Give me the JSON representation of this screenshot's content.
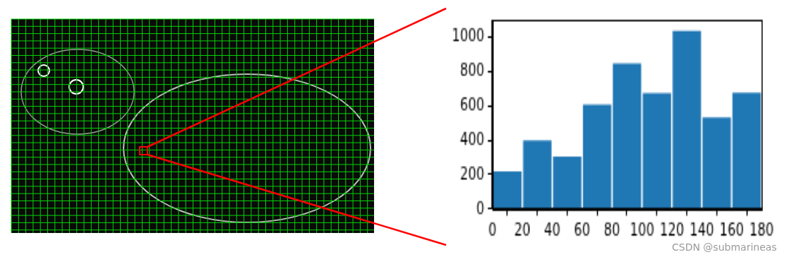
{
  "chart_data": {
    "type": "histogram",
    "bins": [
      0,
      20,
      40,
      60,
      80,
      100,
      120,
      140,
      160,
      180
    ],
    "values": [
      225,
      405,
      312,
      612,
      852,
      680,
      1042,
      538,
      682
    ],
    "color": "#1f77b4",
    "xlim": [
      0,
      180
    ],
    "xticks": [
      0,
      20,
      40,
      60,
      80,
      100,
      120,
      140,
      160,
      180
    ],
    "ylim": [
      0,
      1100
    ],
    "yticks": [
      0,
      200,
      400,
      600,
      800,
      1000
    ],
    "grid": false,
    "annotations": [
      "CSDN @submarineas"
    ]
  }
}
